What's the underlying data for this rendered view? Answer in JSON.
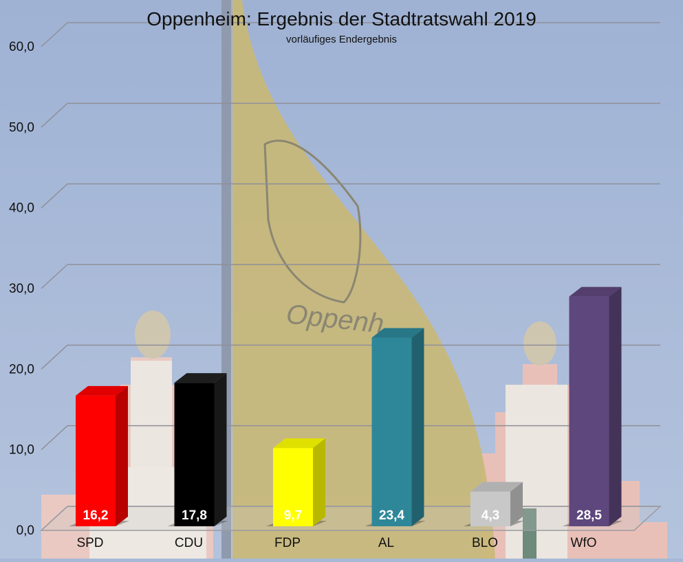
{
  "chart_data": {
    "type": "bar",
    "title": "Oppenheim: Ergebnis der Stadtratswahl 2019",
    "subtitle": "vorläufiges Endergebnis",
    "categories": [
      "SPD",
      "CDU",
      "FDP",
      "AL",
      "BLO",
      "WfO"
    ],
    "values": [
      16.2,
      17.8,
      9.7,
      23.4,
      4.3,
      28.5
    ],
    "value_labels": [
      "16,2",
      "17,8",
      "9,7",
      "23,4",
      "4,3",
      "28,5"
    ],
    "colors": [
      "#ff0000",
      "#000000",
      "#ffff00",
      "#2e8799",
      "#c8c8c8",
      "#5e477c"
    ],
    "yticks": [
      "0,0",
      "10,0",
      "20,0",
      "30,0",
      "40,0",
      "50,0",
      "60,0"
    ],
    "ylim": [
      0,
      60
    ],
    "grid": true,
    "style": "3d"
  }
}
